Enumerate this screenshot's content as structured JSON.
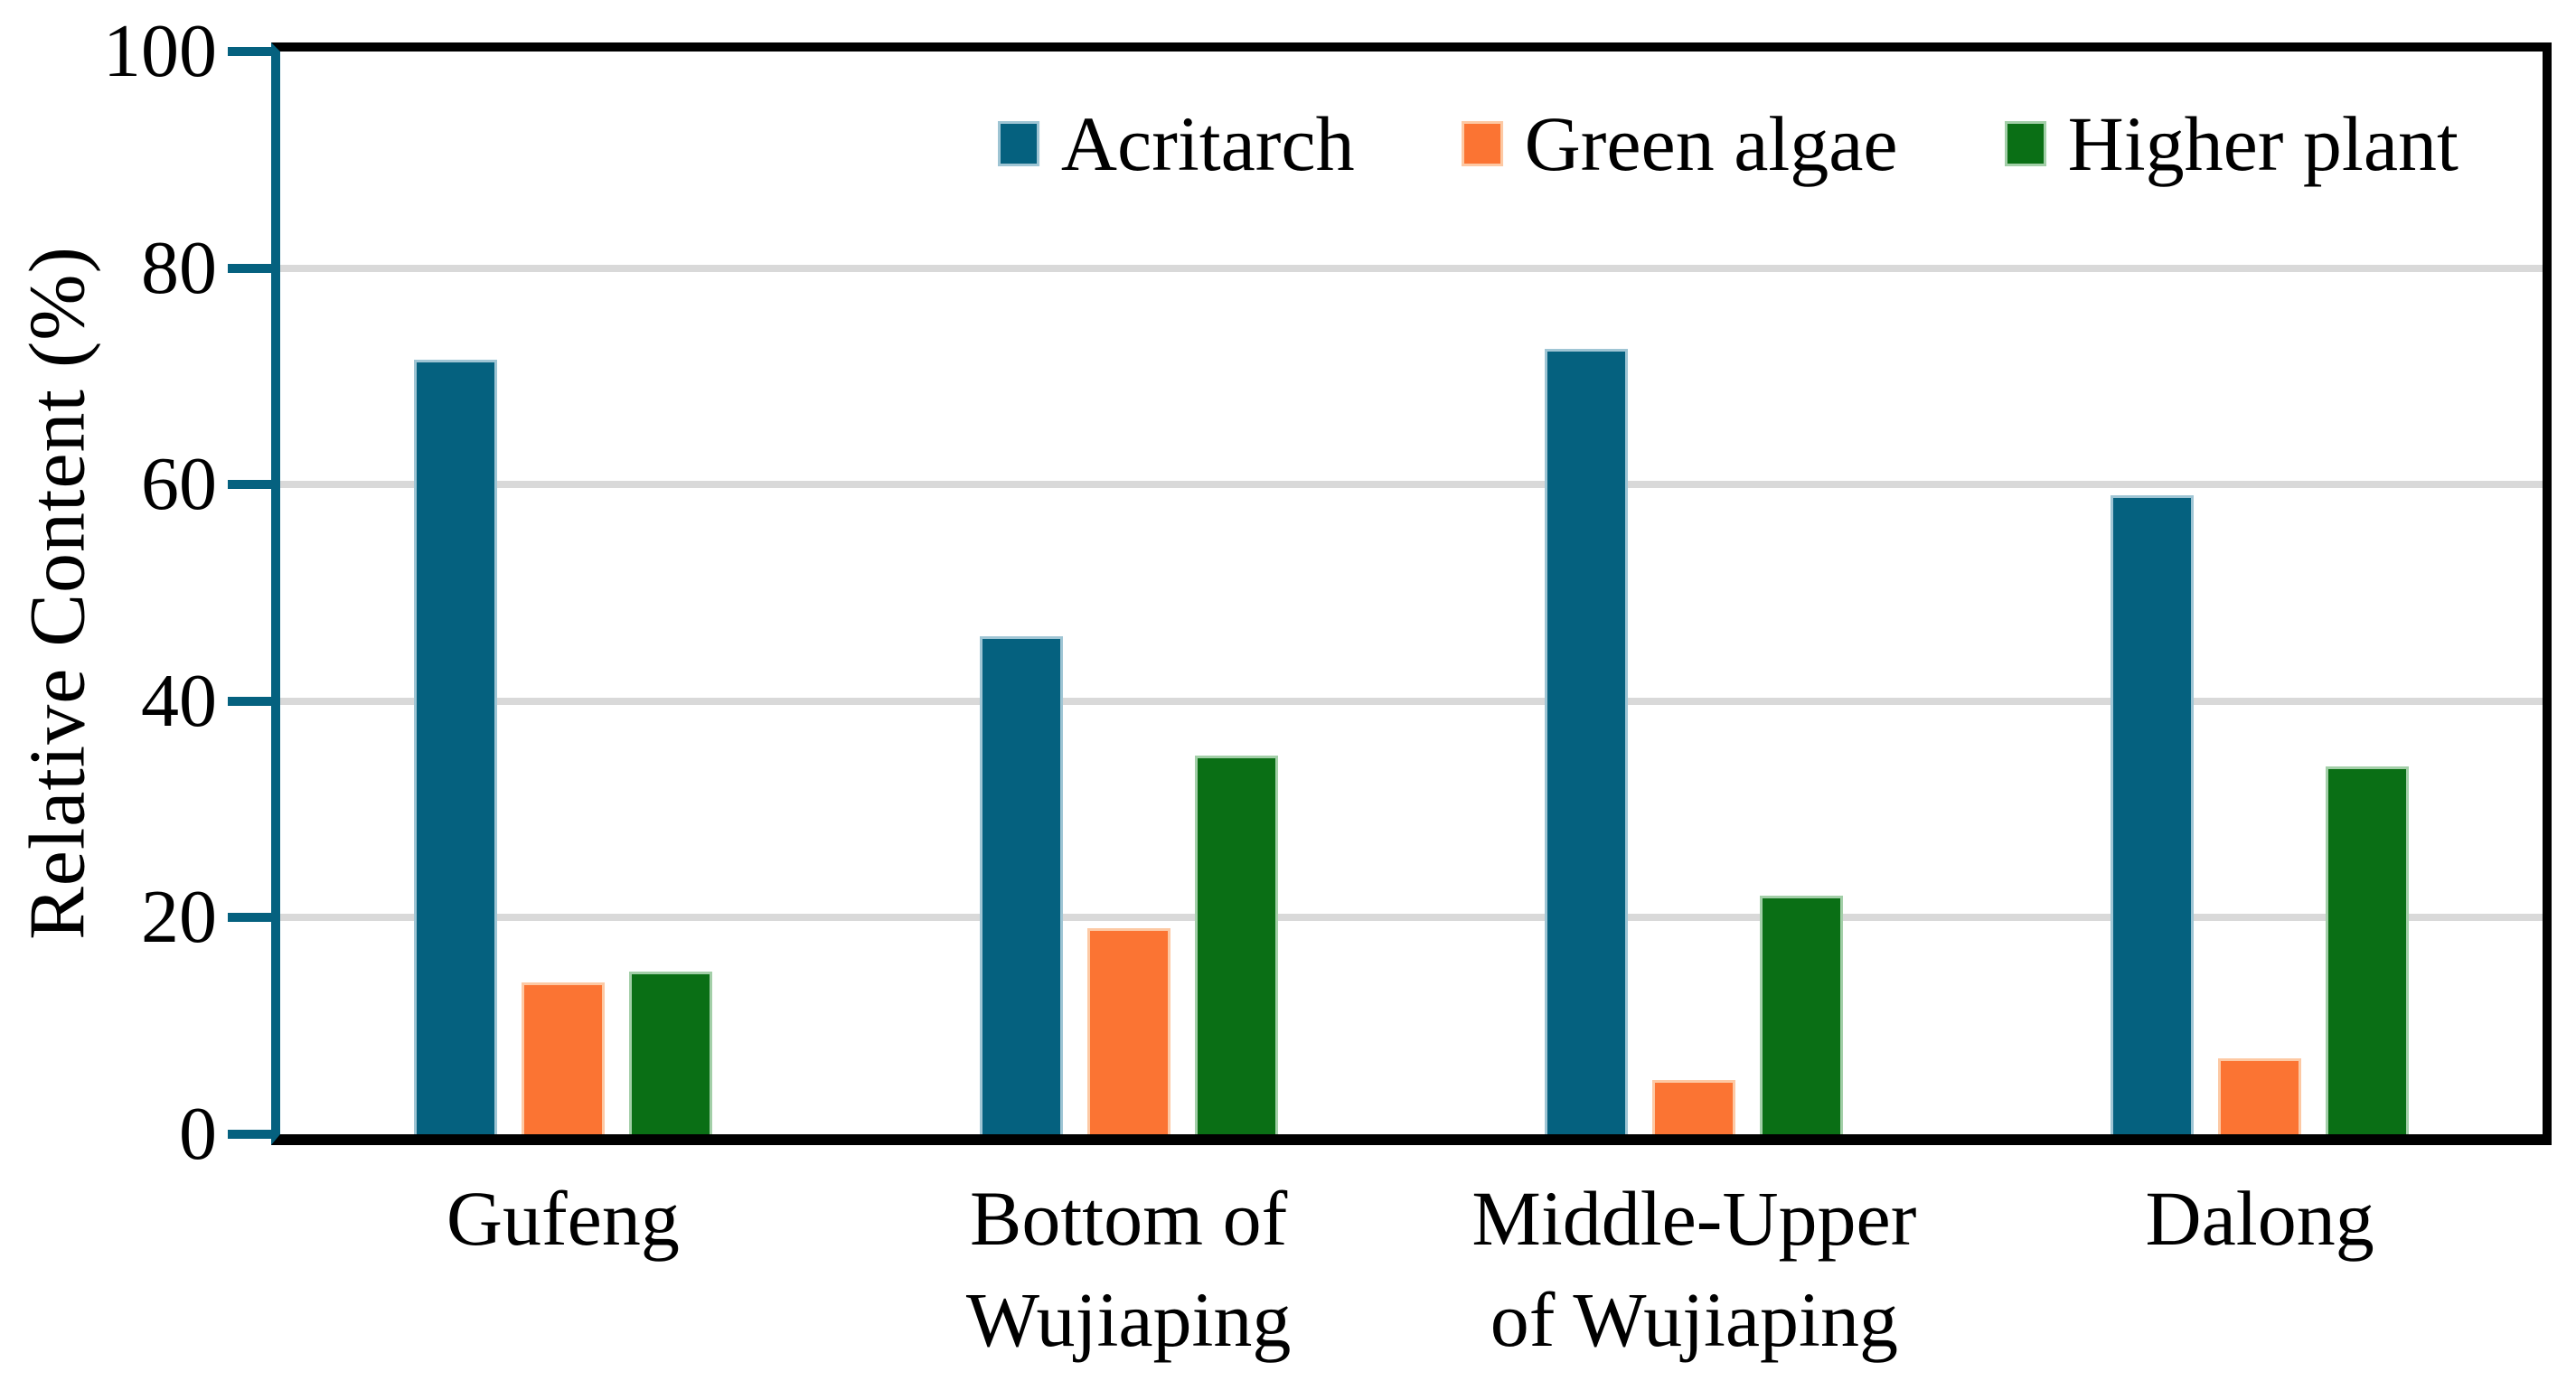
{
  "figure": {
    "background": "#ffffff",
    "text_color": "#000000"
  },
  "colors": {
    "axis_line": "#05617f",
    "tick_mark": "#05617f",
    "gridline": "#d9d9d9",
    "frame": "#000000"
  },
  "chart_data": {
    "type": "bar",
    "title": "",
    "xlabel": "",
    "ylabel": "Relative Content (%)",
    "ylim": [
      0,
      100
    ],
    "yticks": [
      0,
      20,
      40,
      60,
      80,
      100
    ],
    "grid": "horizontal",
    "legend_position": "top center inside plot",
    "categories": [
      "Gufeng",
      "Bottom of\nWujiaping",
      "Middle-Upper\nof Wujiaping",
      "Dalong"
    ],
    "series": [
      {
        "name": "Acritarch",
        "color": "#05617f",
        "border": "#9fc5d4",
        "values": [
          71.5,
          46,
          72.5,
          59
        ]
      },
      {
        "name": "Green algae",
        "color": "#fb7433",
        "border": "#fdc9a4",
        "values": [
          14,
          19,
          5,
          7
        ]
      },
      {
        "name": "Higher plant",
        "color": "#0a6f15",
        "border": "#a3cfa8",
        "values": [
          15,
          35,
          22,
          34
        ]
      }
    ]
  }
}
